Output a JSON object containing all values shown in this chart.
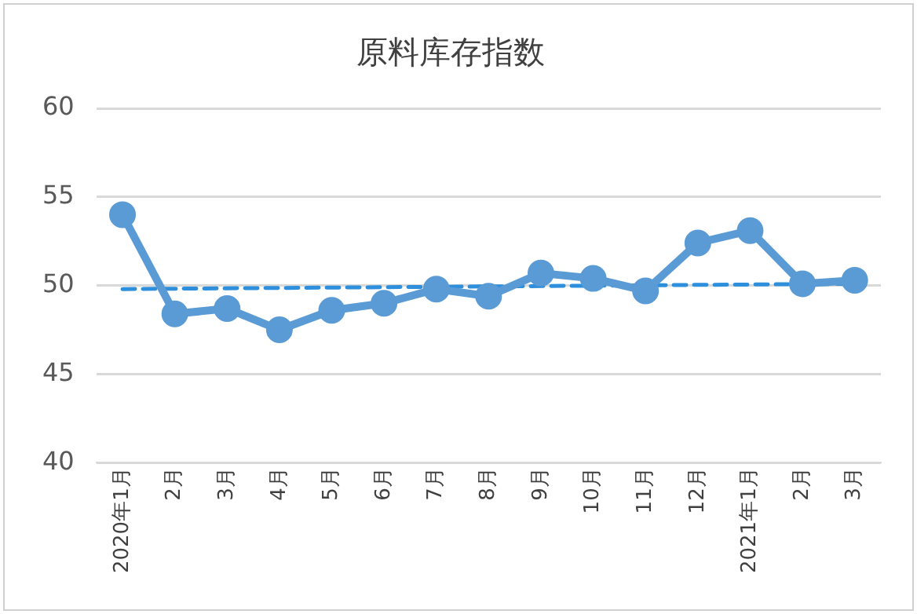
{
  "chart_data": {
    "type": "line",
    "title": "原料库存指数",
    "categories": [
      "2020年1月",
      "2月",
      "3月",
      "4月",
      "5月",
      "6月",
      "7月",
      "8月",
      "9月",
      "10月",
      "11月",
      "12月",
      "2021年1月",
      "2月",
      "3月"
    ],
    "series": [
      {
        "color": "#5b9bd5",
        "marker": "circle",
        "line_style": "solid",
        "values": [
          54.0,
          48.4,
          48.7,
          47.5,
          48.6,
          49.0,
          49.8,
          49.4,
          50.7,
          50.4,
          49.7,
          52.4,
          53.1,
          50.1,
          50.3
        ]
      },
      {
        "type": "line",
        "color": "#2e8fdc",
        "marker": "none",
        "line_style": "dashed",
        "values": [
          49.8,
          null,
          null,
          null,
          null,
          null,
          null,
          null,
          null,
          null,
          null,
          null,
          null,
          null,
          50.1
        ]
      }
    ],
    "ylim": [
      40,
      60
    ],
    "yticks": [
      40,
      45,
      50,
      55,
      60
    ],
    "grid": "y",
    "legend": false
  }
}
